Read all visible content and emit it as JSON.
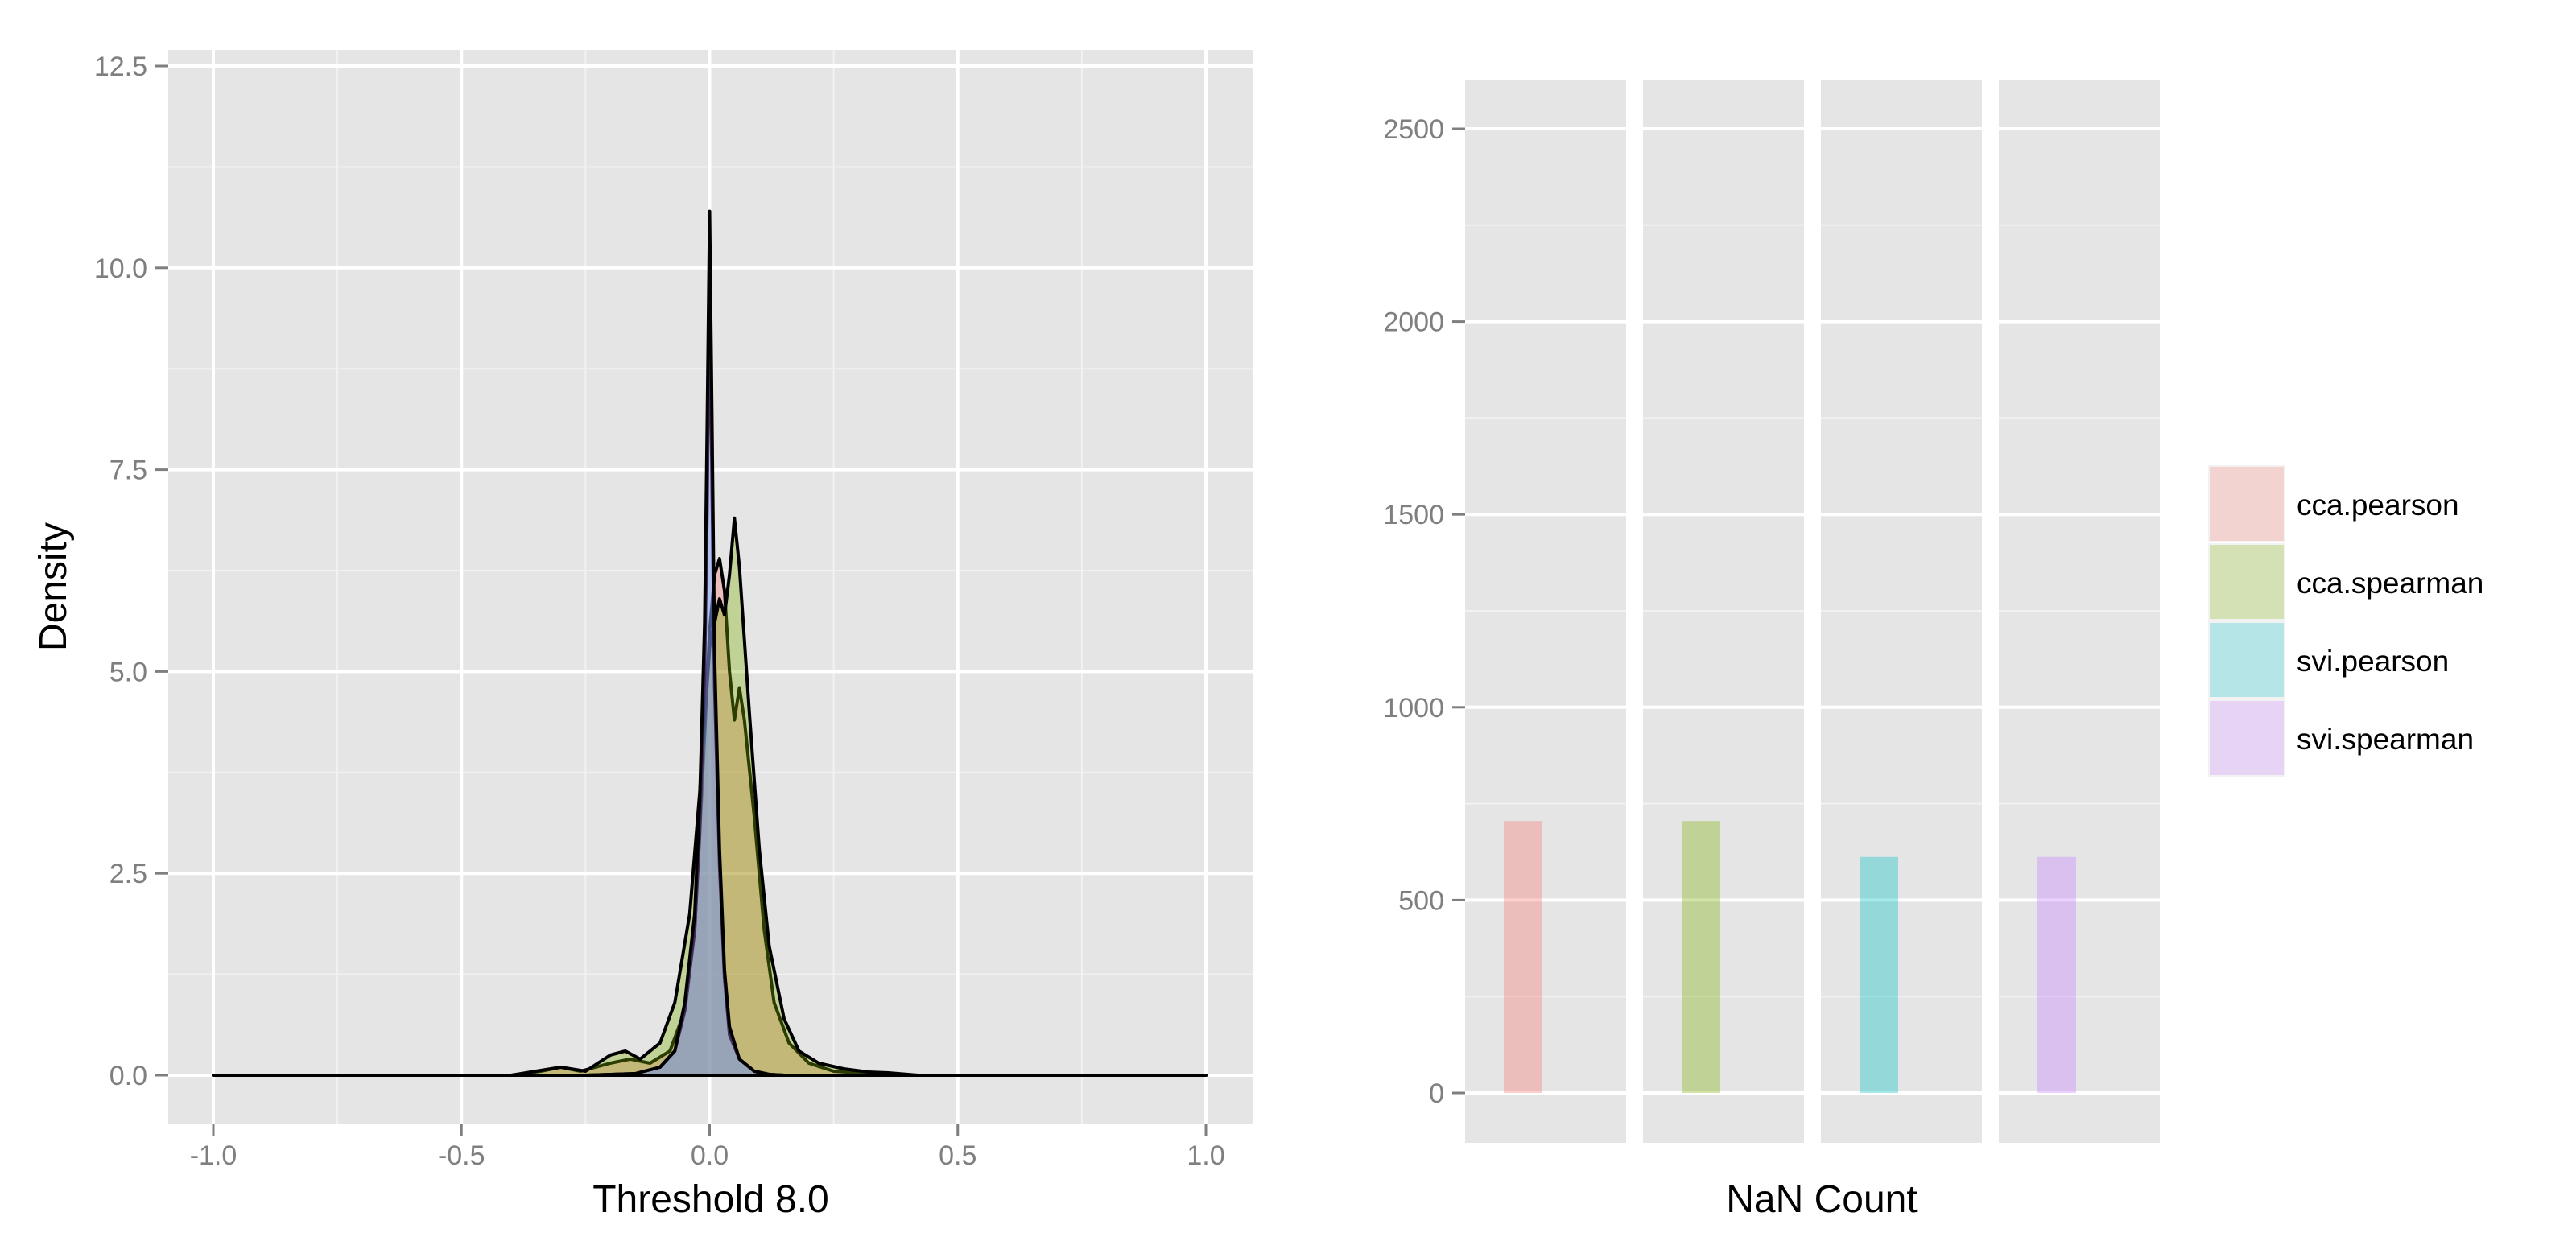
{
  "chart_data": [
    {
      "type": "area",
      "subtype": "density",
      "title": "",
      "xlabel": "Threshold 8.0",
      "ylabel": "Density",
      "xlim": [
        -1.0,
        1.0
      ],
      "ylim": [
        0,
        12.5
      ],
      "x_ticks": [
        "-1.0",
        "-0.5",
        "0.0",
        "0.5",
        "1.0"
      ],
      "y_ticks": [
        "0.0",
        "2.5",
        "5.0",
        "7.5",
        "10.0",
        "12.5"
      ],
      "grid": true,
      "series": [
        {
          "name": "cca.pearson",
          "color": "#F8766D",
          "points": [
            [
              -1.0,
              0
            ],
            [
              -0.4,
              0
            ],
            [
              -0.34,
              0.05
            ],
            [
              -0.3,
              0.1
            ],
            [
              -0.26,
              0.05
            ],
            [
              -0.2,
              0.15
            ],
            [
              -0.16,
              0.2
            ],
            [
              -0.12,
              0.15
            ],
            [
              -0.08,
              0.3
            ],
            [
              -0.05,
              0.8
            ],
            [
              -0.03,
              1.8
            ],
            [
              -0.015,
              3.6
            ],
            [
              0.0,
              5.5
            ],
            [
              0.01,
              6.2
            ],
            [
              0.02,
              6.4
            ],
            [
              0.03,
              6.0
            ],
            [
              0.04,
              5.0
            ],
            [
              0.05,
              4.4
            ],
            [
              0.06,
              4.8
            ],
            [
              0.07,
              4.4
            ],
            [
              0.09,
              3.2
            ],
            [
              0.11,
              1.8
            ],
            [
              0.13,
              0.9
            ],
            [
              0.16,
              0.4
            ],
            [
              0.2,
              0.15
            ],
            [
              0.25,
              0.05
            ],
            [
              0.3,
              0.03
            ],
            [
              0.35,
              0.02
            ],
            [
              0.4,
              0
            ],
            [
              1.0,
              0
            ]
          ]
        },
        {
          "name": "cca.spearman",
          "color": "#7CAE00",
          "points": [
            [
              -1.0,
              0
            ],
            [
              -0.4,
              0
            ],
            [
              -0.35,
              0.05
            ],
            [
              -0.3,
              0.1
            ],
            [
              -0.25,
              0.05
            ],
            [
              -0.2,
              0.25
            ],
            [
              -0.17,
              0.3
            ],
            [
              -0.14,
              0.2
            ],
            [
              -0.1,
              0.4
            ],
            [
              -0.07,
              0.9
            ],
            [
              -0.04,
              2.0
            ],
            [
              -0.02,
              3.5
            ],
            [
              0.0,
              5.3
            ],
            [
              0.02,
              5.9
            ],
            [
              0.03,
              5.7
            ],
            [
              0.04,
              6.2
            ],
            [
              0.05,
              6.9
            ],
            [
              0.06,
              6.3
            ],
            [
              0.08,
              4.5
            ],
            [
              0.1,
              2.8
            ],
            [
              0.12,
              1.6
            ],
            [
              0.15,
              0.7
            ],
            [
              0.18,
              0.3
            ],
            [
              0.22,
              0.15
            ],
            [
              0.27,
              0.08
            ],
            [
              0.32,
              0.04
            ],
            [
              0.36,
              0.03
            ],
            [
              0.42,
              0
            ],
            [
              1.0,
              0
            ]
          ]
        },
        {
          "name": "svi.pearson",
          "color": "#00BFC4",
          "points": [
            [
              -1.0,
              0
            ],
            [
              -0.25,
              0
            ],
            [
              -0.15,
              0.02
            ],
            [
              -0.1,
              0.1
            ],
            [
              -0.07,
              0.3
            ],
            [
              -0.05,
              0.8
            ],
            [
              -0.03,
              1.8
            ],
            [
              -0.02,
              3.0
            ],
            [
              -0.01,
              5.0
            ],
            [
              -0.005,
              7.0
            ],
            [
              0.0,
              9.8
            ],
            [
              0.005,
              7.2
            ],
            [
              0.01,
              4.8
            ],
            [
              0.02,
              2.6
            ],
            [
              0.03,
              1.2
            ],
            [
              0.04,
              0.5
            ],
            [
              0.06,
              0.2
            ],
            [
              0.09,
              0.05
            ],
            [
              0.12,
              0.01
            ],
            [
              0.15,
              0
            ],
            [
              1.0,
              0
            ]
          ]
        },
        {
          "name": "svi.spearman",
          "color": "#C77CFF",
          "points": [
            [
              -1.0,
              0
            ],
            [
              -0.25,
              0
            ],
            [
              -0.15,
              0.02
            ],
            [
              -0.1,
              0.1
            ],
            [
              -0.07,
              0.3
            ],
            [
              -0.05,
              0.9
            ],
            [
              -0.03,
              2.0
            ],
            [
              -0.02,
              3.4
            ],
            [
              -0.01,
              5.6
            ],
            [
              -0.005,
              8.0
            ],
            [
              0.0,
              10.7
            ],
            [
              0.005,
              8.0
            ],
            [
              0.01,
              5.2
            ],
            [
              0.02,
              2.8
            ],
            [
              0.03,
              1.3
            ],
            [
              0.04,
              0.6
            ],
            [
              0.06,
              0.2
            ],
            [
              0.09,
              0.05
            ],
            [
              0.12,
              0.01
            ],
            [
              0.15,
              0
            ],
            [
              1.0,
              0
            ]
          ]
        }
      ]
    },
    {
      "type": "bar",
      "title": "",
      "xlabel": "NaN Count",
      "ylabel": "",
      "ylim": [
        -120,
        2620
      ],
      "y_ticks": [
        "0",
        "500",
        "1000",
        "1500",
        "2000",
        "2500"
      ],
      "grid": true,
      "facets": [
        "cca.pearson",
        "cca.spearman",
        "svi.pearson",
        "svi.spearman"
      ],
      "values": [
        705,
        705,
        612,
        612
      ],
      "colors": [
        "#F8766D",
        "#7CAE00",
        "#00BFC4",
        "#C77CFF"
      ]
    }
  ],
  "legend": {
    "position": "right",
    "items": [
      {
        "label": "cca.pearson",
        "color": "#F8766D"
      },
      {
        "label": "cca.spearman",
        "color": "#7CAE00"
      },
      {
        "label": "svi.pearson",
        "color": "#00BFC4"
      },
      {
        "label": "svi.spearman",
        "color": "#C77CFF"
      }
    ]
  }
}
